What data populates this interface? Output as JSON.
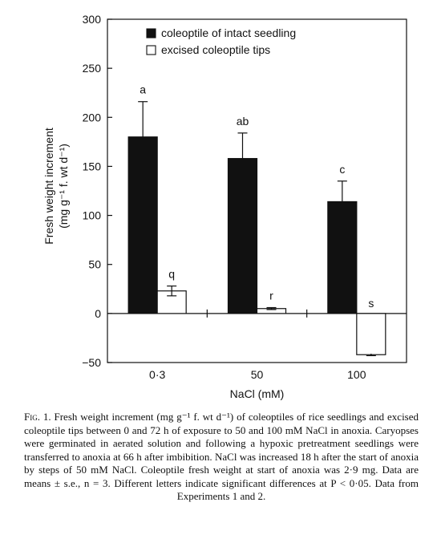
{
  "chart_data": {
    "type": "bar",
    "categories": [
      "0·3",
      "50",
      "100"
    ],
    "series": [
      {
        "name": "coleoptile of intact seedling",
        "fill": "#111111",
        "values": [
          180,
          158,
          114
        ],
        "errors": [
          36,
          26,
          21
        ],
        "letters": [
          "a",
          "ab",
          "c"
        ]
      },
      {
        "name": "excised coleoptile tips",
        "fill": "#ffffff",
        "values": [
          23,
          5,
          -42
        ],
        "errors": [
          5,
          1,
          1
        ],
        "letters": [
          "q",
          "r",
          "s"
        ]
      }
    ],
    "ylabel_line1": "Fresh weight increment",
    "ylabel_line2": "(mg g⁻¹ f. wt d⁻¹)",
    "xlabel": "NaCl (mM)",
    "ylim": [
      -50,
      300
    ],
    "yticks": [
      -50,
      0,
      50,
      100,
      150,
      200,
      250,
      300
    ],
    "ytick_labels": [
      "−50",
      "0",
      "50",
      "100",
      "150",
      "200",
      "250",
      "300"
    ],
    "legend_position": "top-center"
  },
  "caption": {
    "label": "Fig. 1.",
    "text": "Fresh weight increment (mg g⁻¹ f. wt d⁻¹) of coleoptiles of rice seedlings and excised coleoptile tips between 0 and 72 h of exposure to 50 and 100 mM NaCl in anoxia. Caryopses were germinated in aerated solution and following a hypoxic pretreatment seedlings were transferred to anoxia at 66 h after imbibition. NaCl was increased 18 h after the start of anoxia by steps of 50 mM NaCl. Coleoptile fresh weight at start of anoxia was 2·9 mg. Data are means ± s.e., n = 3. Different letters indicate significant differences at P < 0·05. Data from Experiments 1 and 2."
  }
}
